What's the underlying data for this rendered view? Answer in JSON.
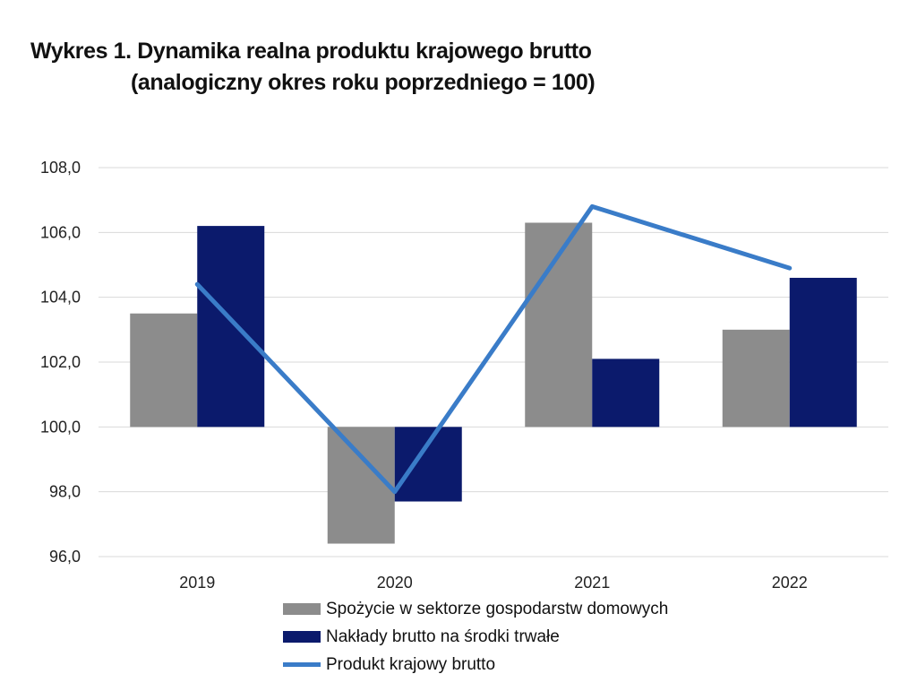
{
  "title": {
    "line1": "Wykres 1. Dynamika realna produktu krajowego brutto",
    "line2": "(analogiczny okres roku poprzedniego = 100)"
  },
  "chart_data": {
    "type": "bar",
    "categories": [
      "2019",
      "2020",
      "2021",
      "2022"
    ],
    "ylim": [
      96.0,
      108.0
    ],
    "yticks": [
      "96,0",
      "98,0",
      "100,0",
      "102,0",
      "104,0",
      "106,0",
      "108,0"
    ],
    "baseline": 100.0,
    "grid": true,
    "legend_position": "bottom",
    "series": [
      {
        "name": "Spożycie w sektorze gospodarstw domowych",
        "type": "bar",
        "color": "#8c8c8c",
        "values": [
          103.5,
          96.4,
          106.3,
          103.0
        ]
      },
      {
        "name": "Nakłady brutto na środki trwałe",
        "type": "bar",
        "color": "#0b1a6c",
        "values": [
          106.2,
          97.7,
          102.1,
          104.6
        ]
      },
      {
        "name": "Produkt krajowy brutto",
        "type": "line",
        "color": "#3a7cc8",
        "values": [
          104.4,
          98.0,
          106.8,
          104.9
        ]
      }
    ]
  }
}
